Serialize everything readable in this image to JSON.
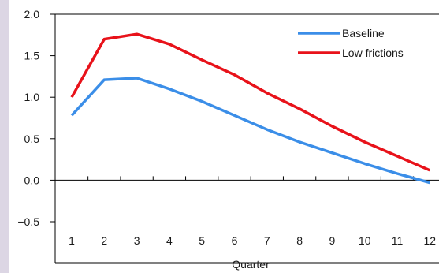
{
  "chart_data": {
    "type": "line",
    "title": "",
    "xlabel": "Quarter",
    "ylabel": "",
    "x": [
      1,
      2,
      3,
      4,
      5,
      6,
      7,
      8,
      9,
      10,
      11,
      12
    ],
    "x_tick_labels": [
      "1",
      "2",
      "3",
      "4",
      "5",
      "6",
      "7",
      "8",
      "9",
      "10",
      "11",
      "12"
    ],
    "y_tick_labels": [
      "2.0",
      "1.5",
      "1.0",
      "0.5",
      "0.0",
      "−0.5"
    ],
    "y_ticks": [
      2.0,
      1.5,
      1.0,
      0.5,
      0.0,
      -0.5
    ],
    "ylim": [
      -0.5,
      2.0
    ],
    "grid": false,
    "legend_position": "top-right",
    "series": [
      {
        "name": "Baseline",
        "color": "#3b8ee8",
        "values": [
          0.78,
          1.21,
          1.23,
          1.1,
          0.95,
          0.78,
          0.61,
          0.46,
          0.33,
          0.2,
          0.08,
          -0.03
        ]
      },
      {
        "name": "Low frictions",
        "color": "#e8121a",
        "values": [
          1.0,
          1.7,
          1.76,
          1.64,
          1.45,
          1.27,
          1.05,
          0.86,
          0.65,
          0.46,
          0.29,
          0.12
        ]
      }
    ]
  }
}
